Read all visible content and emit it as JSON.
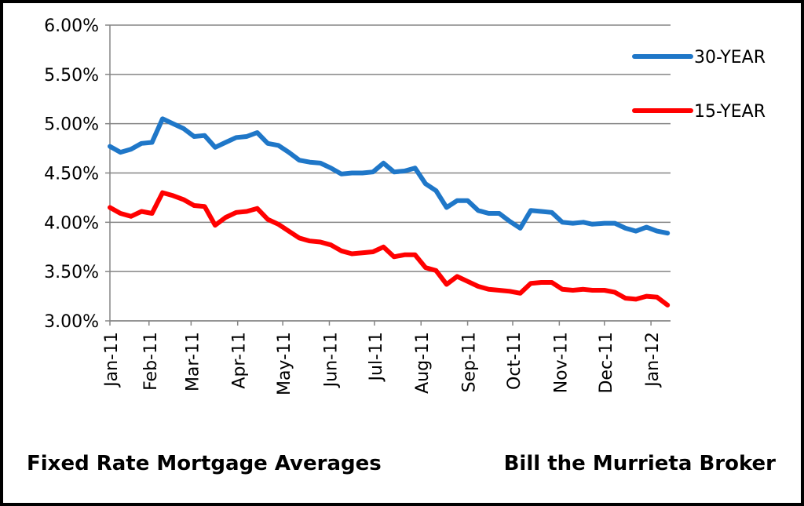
{
  "chart_data": {
    "type": "line",
    "ylim": [
      0.03,
      0.06
    ],
    "y_ticks": [
      "6.00%",
      "5.50%",
      "5.00%",
      "4.50%",
      "4.00%",
      "3.50%",
      "3.00%"
    ],
    "x_tick_labels": [
      "Jan-11",
      "Feb-11",
      "Mar-11",
      "Apr-11",
      "May-11",
      "Jun-11",
      "Jul-11",
      "Aug-11",
      "Sep-11",
      "Oct-11",
      "Nov-11",
      "Dec-11",
      "Jan-12"
    ],
    "grid": "horizontal",
    "legend_position": "top-right",
    "x": [
      "2011-01-06",
      "2011-01-13",
      "2011-01-20",
      "2011-01-27",
      "2011-02-03",
      "2011-02-10",
      "2011-02-17",
      "2011-02-24",
      "2011-03-03",
      "2011-03-10",
      "2011-03-17",
      "2011-03-24",
      "2011-03-31",
      "2011-04-07",
      "2011-04-14",
      "2011-04-21",
      "2011-04-28",
      "2011-05-05",
      "2011-05-12",
      "2011-05-19",
      "2011-05-26",
      "2011-06-02",
      "2011-06-09",
      "2011-06-16",
      "2011-06-23",
      "2011-06-30",
      "2011-07-07",
      "2011-07-14",
      "2011-07-21",
      "2011-07-28",
      "2011-08-04",
      "2011-08-11",
      "2011-08-18",
      "2011-08-25",
      "2011-09-01",
      "2011-09-08",
      "2011-09-15",
      "2011-09-22",
      "2011-09-29",
      "2011-10-06",
      "2011-10-13",
      "2011-10-20",
      "2011-10-27",
      "2011-11-03",
      "2011-11-10",
      "2011-11-17",
      "2011-11-23",
      "2011-12-01",
      "2011-12-08",
      "2011-12-15",
      "2011-12-22",
      "2011-12-29",
      "2012-01-05",
      "2012-01-12"
    ],
    "series": [
      {
        "name": "30-YEAR",
        "color": "#1f77c8",
        "values": [
          4.77,
          4.71,
          4.74,
          4.8,
          4.81,
          5.05,
          5.0,
          4.95,
          4.87,
          4.88,
          4.76,
          4.81,
          4.86,
          4.87,
          4.91,
          4.8,
          4.78,
          4.71,
          4.63,
          4.61,
          4.6,
          4.55,
          4.49,
          4.5,
          4.5,
          4.51,
          4.6,
          4.51,
          4.52,
          4.55,
          4.39,
          4.32,
          4.15,
          4.22,
          4.22,
          4.12,
          4.09,
          4.09,
          4.01,
          3.94,
          4.12,
          4.11,
          4.1,
          4.0,
          3.99,
          4.0,
          3.98,
          3.99,
          3.99,
          3.94,
          3.91,
          3.95,
          3.91,
          3.89
        ]
      },
      {
        "name": "15-YEAR",
        "color": "#ff0000",
        "values": [
          4.15,
          4.09,
          4.06,
          4.11,
          4.09,
          4.3,
          4.27,
          4.23,
          4.17,
          4.16,
          3.97,
          4.05,
          4.1,
          4.11,
          4.14,
          4.03,
          3.98,
          3.91,
          3.84,
          3.81,
          3.8,
          3.77,
          3.71,
          3.68,
          3.69,
          3.7,
          3.75,
          3.65,
          3.67,
          3.67,
          3.54,
          3.51,
          3.37,
          3.45,
          3.4,
          3.35,
          3.32,
          3.31,
          3.3,
          3.28,
          3.38,
          3.39,
          3.39,
          3.32,
          3.31,
          3.32,
          3.31,
          3.31,
          3.29,
          3.23,
          3.22,
          3.25,
          3.24,
          3.16
        ]
      }
    ],
    "legend": [
      "30-YEAR",
      "15-YEAR"
    ],
    "footer_left": "Fixed Rate Mortgage Averages",
    "footer_right": "Bill the Murrieta Broker"
  }
}
